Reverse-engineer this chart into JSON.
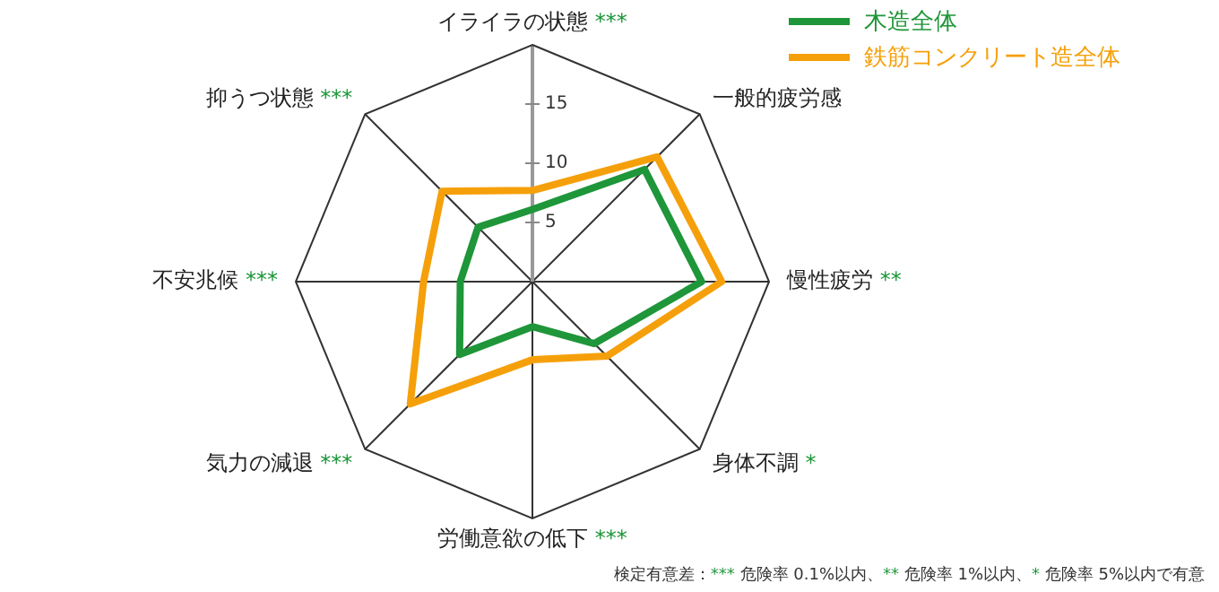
{
  "chart_data": {
    "type": "radar",
    "categories": [
      "イライラの状態 ***",
      "一般的疲労感",
      "慢性疲労 **",
      "身体不調 *",
      "労働意欲の低下 ***",
      "気力の減退 ***",
      "不安兆候 ***",
      "抑うつ状態 ***"
    ],
    "series": [
      {
        "name": "木造全体",
        "color": "#1e9639",
        "values": [
          6.1,
          13.4,
          14.3,
          7.4,
          3.8,
          8.7,
          6.1,
          6.5
        ]
      },
      {
        "name": "鉄筋コンクリート造全体",
        "color": "#f5a00a",
        "values": [
          7.7,
          14.9,
          16.0,
          8.9,
          6.6,
          14.6,
          9.2,
          10.8
        ]
      }
    ],
    "ylim": [
      0,
      20
    ],
    "yticks": [
      5,
      10,
      15
    ],
    "marker": "none",
    "line_style": "solid",
    "legend": "top right",
    "annotations": [
      "検定有意差：*** 危険率 0.1%以内、** 危険率 1%以内、* 危険率 5%以内で有意"
    ]
  }
}
